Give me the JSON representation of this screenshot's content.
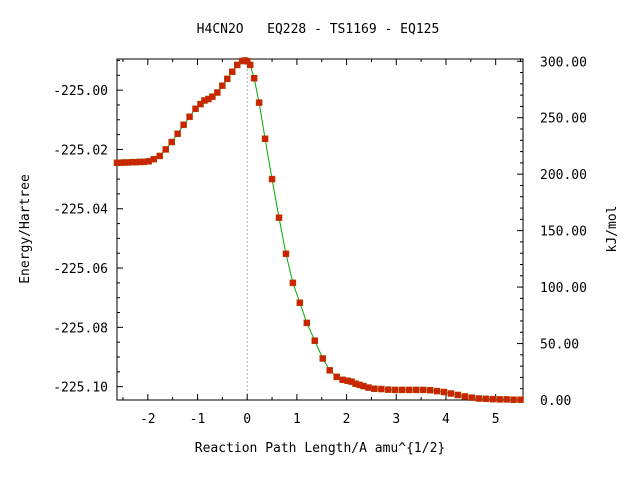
{
  "chart_data": {
    "type": "line",
    "title": "H4CN2O   EQ228 - TS1169 - EQ125",
    "xlabel": "Reaction Path Length/A amu^{1/2}",
    "ylabel": "Energy/Hartree",
    "y2label": "kJ/mol",
    "xlim": [
      -2.62,
      5.55
    ],
    "ylim": [
      -225.1045,
      -224.9895
    ],
    "y2lim": [
      0,
      302
    ],
    "grid": false,
    "xticks": [
      -2,
      -1,
      0,
      1,
      2,
      3,
      4,
      5
    ],
    "xtick_labels": [
      "-2",
      "-1",
      "0",
      "1",
      "2",
      "3",
      "4",
      "5"
    ],
    "yticks": [
      -225.0,
      -225.02,
      -225.04,
      -225.06,
      -225.08,
      -225.1
    ],
    "ytick_labels": [
      "-225.00",
      "-225.02",
      "-225.04",
      "-225.06",
      "-225.08",
      "-225.10"
    ],
    "y2ticks": [
      0,
      50,
      100,
      150,
      200,
      250,
      300
    ],
    "y2tick_labels": [
      "0.00",
      "50.00",
      "100.00",
      "150.00",
      "200.00",
      "250.00",
      "300.00"
    ],
    "ts_marker_x": 0,
    "line_color": "#00aa00",
    "marker_color": "#cc2200",
    "series": [
      {
        "x": [
          -2.62,
          -2.55,
          -2.48,
          -2.4,
          -2.32,
          -2.24,
          -2.16,
          -2.08,
          -1.98,
          -1.88,
          -1.76,
          -1.64,
          -1.52,
          -1.4,
          -1.28,
          -1.16,
          -1.04,
          -0.94,
          -0.86,
          -0.78,
          -0.7,
          -0.6,
          -0.5,
          -0.4,
          -0.3,
          -0.2,
          -0.1,
          -0.05,
          0,
          0.06,
          0.14,
          0.24,
          0.36,
          0.5,
          0.64,
          0.78,
          0.92,
          1.06,
          1.2,
          1.36,
          1.52,
          1.66,
          1.8,
          1.92,
          2.02,
          2.1,
          2.18,
          2.26,
          2.34,
          2.44,
          2.56,
          2.7,
          2.84,
          2.98,
          3.12,
          3.26,
          3.4,
          3.54,
          3.68,
          3.82,
          3.96,
          4.1,
          4.24,
          4.38,
          4.52,
          4.66,
          4.8,
          4.94,
          5.08,
          5.22,
          5.36,
          5.5
        ],
        "y": [
          -225.0245,
          -225.0245,
          -225.0244,
          -225.0244,
          -225.0243,
          -225.0243,
          -225.0242,
          -225.0242,
          -225.024,
          -225.0233,
          -225.0222,
          -225.02,
          -225.0175,
          -225.0147,
          -225.0117,
          -225.009,
          -225.0063,
          -225.0047,
          -225.0035,
          -225.003,
          -225.0022,
          -225.0008,
          -224.9985,
          -224.9962,
          -224.9938,
          -224.9915,
          -224.9902,
          -224.99,
          -224.9902,
          -224.9915,
          -224.996,
          -225.0042,
          -225.0164,
          -225.03,
          -225.043,
          -225.0552,
          -225.065,
          -225.0717,
          -225.0785,
          -225.0845,
          -225.0905,
          -225.0945,
          -225.0967,
          -225.0977,
          -225.098,
          -225.0983,
          -225.099,
          -225.0994,
          -225.0998,
          -225.1003,
          -225.1007,
          -225.1008,
          -225.101,
          -225.1011,
          -225.1011,
          -225.1011,
          -225.1011,
          -225.1011,
          -225.1012,
          -225.1015,
          -225.1018,
          -225.1023,
          -225.1028,
          -225.1033,
          -225.1037,
          -225.104,
          -225.1041,
          -225.1042,
          -225.1043,
          -225.1043,
          -225.1044,
          -225.1044
        ]
      }
    ]
  }
}
